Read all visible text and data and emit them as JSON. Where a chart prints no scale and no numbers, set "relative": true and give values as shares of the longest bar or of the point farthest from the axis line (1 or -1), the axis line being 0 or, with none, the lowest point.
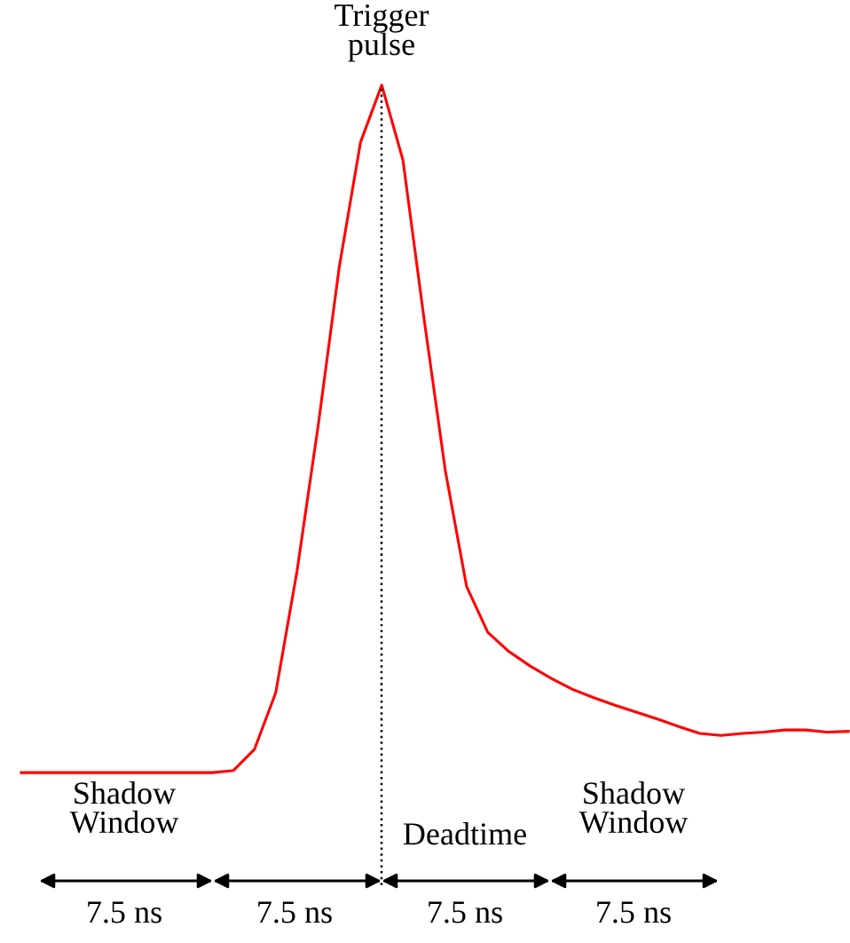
{
  "chart_data": {
    "type": "line",
    "relative": true,
    "categories": [
      null,
      null,
      null,
      null,
      null,
      null,
      null,
      null,
      null,
      null,
      null,
      null,
      null,
      null,
      null,
      null,
      null,
      null,
      null,
      null,
      null,
      null,
      null,
      null,
      null,
      null,
      null,
      null,
      null,
      null,
      null,
      null,
      null,
      null,
      null,
      null,
      null,
      null,
      null,
      null
    ],
    "series": [
      {
        "color": "#ff0000",
        "values": [
          0,
          0,
          0,
          0,
          0,
          0,
          0,
          0,
          0,
          0,
          0.003,
          0.034,
          0.116,
          0.292,
          0.504,
          0.736,
          0.917,
          1,
          0.891,
          0.659,
          0.439,
          0.271,
          0.204,
          0.176,
          0.155,
          0.137,
          0.121,
          0.109,
          0.098,
          0.088,
          0.078,
          0.067,
          0.057,
          0.054,
          0.057,
          0.059,
          0.062,
          0.062,
          0.059,
          0.06
        ]
      }
    ],
    "annotations": [
      "Trigger\npulse",
      "Shadow\nWindow",
      "Deadtime",
      "Shadow\nWindow",
      "7.5 ns",
      "7.5 ns",
      "7.5 ns",
      "7.5 ns"
    ]
  }
}
